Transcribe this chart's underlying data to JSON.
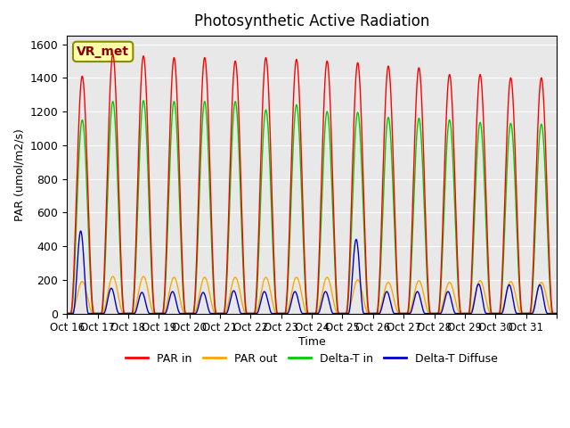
{
  "title": "Photosynthetic Active Radiation",
  "ylabel": "PAR (umol/m2/s)",
  "xlabel": "Time",
  "ylim": [
    0,
    1650
  ],
  "annotation": "VR_met",
  "bg_color": "#e8e8e8",
  "line_colors": {
    "par_in": "#ff0000",
    "par_out": "#ffa500",
    "delta_t_in": "#00cc00",
    "delta_t_diffuse": "#0000cc"
  },
  "legend_labels": [
    "PAR in",
    "PAR out",
    "Delta-T in",
    "Delta-T Diffuse"
  ],
  "x_tick_labels": [
    "Oct 16",
    "Oct 17",
    "Oct 18",
    "Oct 19",
    "Oct 20",
    "Oct 21",
    "Oct 22",
    "Oct 23",
    "Oct 24",
    "Oct 25",
    "Oct 26",
    "Oct 27",
    "Oct 28",
    "Oct 29",
    "Oct 30",
    "Oct 31",
    ""
  ],
  "num_days": 16,
  "par_in_peaks": [
    1410,
    1540,
    1530,
    1520,
    1520,
    1500,
    1520,
    1510,
    1500,
    1490,
    1470,
    1460,
    1420,
    1420,
    1400,
    1400
  ],
  "par_out_peaks": [
    190,
    220,
    220,
    215,
    215,
    215,
    215,
    215,
    215,
    200,
    185,
    195,
    185,
    195,
    190,
    185
  ],
  "delta_t_peaks": [
    1150,
    1260,
    1265,
    1260,
    1260,
    1260,
    1210,
    1240,
    1200,
    1195,
    1165,
    1160,
    1150,
    1135,
    1130,
    1125
  ],
  "diffuse_peaks": [
    490,
    150,
    125,
    130,
    125,
    135,
    130,
    130,
    130,
    440,
    130,
    130,
    130,
    175,
    170,
    170
  ],
  "pts_per_day": 200
}
